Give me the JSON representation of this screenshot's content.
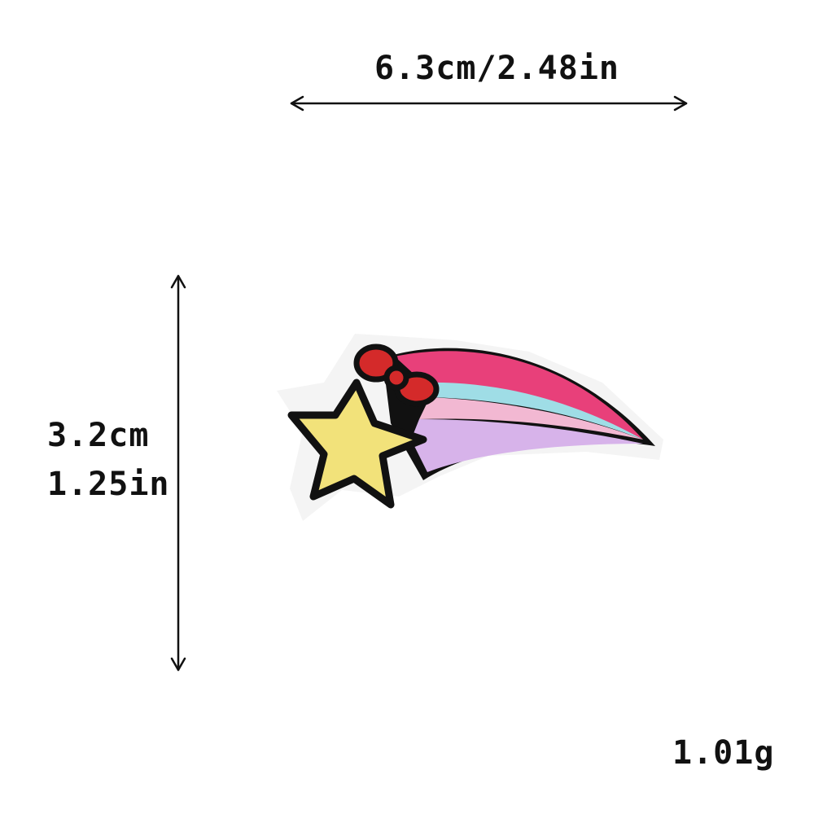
{
  "measurements": {
    "width": "6.3cm/2.48in",
    "height_cm": "3.2cm",
    "height_in": "1.25in",
    "weight": "1.01g"
  },
  "colors": {
    "outline": "#111111",
    "star": "#f2e27a",
    "bow": "#d42a2a",
    "stripe_pink": "#e8407a",
    "stripe_cyan": "#9fdde6",
    "stripe_light_pink": "#f2b8d2",
    "stripe_lavender": "#d7b3ea",
    "backing": "#f4f4f4"
  },
  "icons": {
    "width_arrow": "double-arrow-horizontal",
    "height_arrow": "double-arrow-vertical",
    "product": "shooting-star-patch"
  }
}
